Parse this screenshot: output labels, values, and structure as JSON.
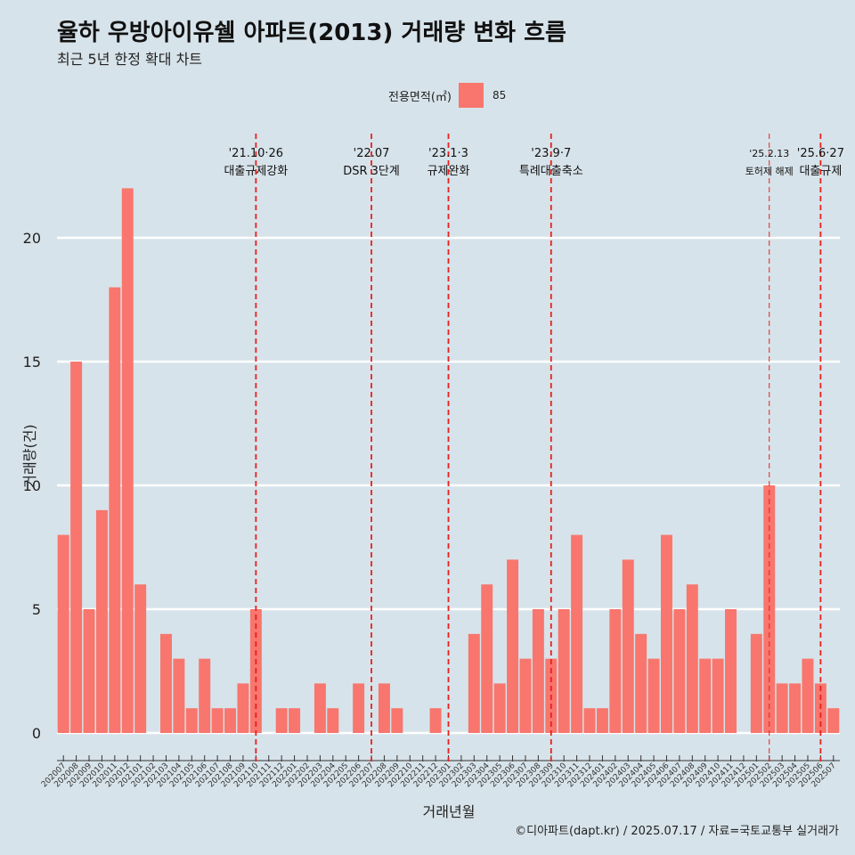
{
  "header": {
    "title": "율하 우방아이유쉘 아파트(2013) 거래량 변화 흐름",
    "subtitle": "최근 5년 한정 확대 차트"
  },
  "legend": {
    "title": "전용면적(㎡)",
    "label": "85",
    "color": "#f8766d"
  },
  "caption": "©디아파트(dapt.kr) / 2025.07.17 / 자료=국토교통부 실거래가",
  "chart_data": {
    "type": "bar",
    "xlabel": "거래년월",
    "ylabel": "거래량(건)",
    "ylim": [
      0,
      24
    ],
    "yticks": [
      0,
      5,
      10,
      15,
      20
    ],
    "bar_color": "#f8766d",
    "grid": true,
    "categories": [
      "202007",
      "202008",
      "202009",
      "202010",
      "202011",
      "202012",
      "202101",
      "202102",
      "202103",
      "202104",
      "202105",
      "202106",
      "202107",
      "202108",
      "202109",
      "202110",
      "202111",
      "202112",
      "202201",
      "202202",
      "202203",
      "202204",
      "202205",
      "202206",
      "202207",
      "202208",
      "202209",
      "202210",
      "202211",
      "202212",
      "202301",
      "202302",
      "202303",
      "202304",
      "202305",
      "202306",
      "202307",
      "202308",
      "202309",
      "202310",
      "202311",
      "202312",
      "202401",
      "202402",
      "202403",
      "202404",
      "202405",
      "202406",
      "202407",
      "202408",
      "202409",
      "202410",
      "202411",
      "202412",
      "202501",
      "202502",
      "202503",
      "202504",
      "202505",
      "202506",
      "202507"
    ],
    "series": [
      {
        "name": "85",
        "values": [
          8,
          15,
          5,
          9,
          18,
          22,
          6,
          0,
          4,
          3,
          1,
          3,
          1,
          1,
          2,
          5,
          0,
          1,
          1,
          0,
          2,
          1,
          0,
          2,
          0,
          2,
          1,
          0,
          0,
          1,
          0,
          0,
          4,
          6,
          2,
          7,
          3,
          5,
          3,
          5,
          8,
          1,
          1,
          5,
          7,
          4,
          3,
          8,
          5,
          6,
          3,
          3,
          5,
          0,
          4,
          10,
          2,
          2,
          3,
          2,
          1
        ]
      }
    ],
    "annotations": [
      {
        "x": "202110",
        "date": "'21.10·26",
        "label": "대출규제강화",
        "style": "dashed"
      },
      {
        "x": "202207",
        "date": "'22.07",
        "label": "DSR 3단계",
        "style": "dashed"
      },
      {
        "x": "202301",
        "date": "'23.1·3",
        "label": "규제완화",
        "style": "dashed"
      },
      {
        "x": "202309",
        "date": "'23.9·7",
        "label": "특례대출축소",
        "style": "dashed"
      },
      {
        "x": "202502",
        "date": "'25.2.13",
        "label": "토허제 해제",
        "style": "thin"
      },
      {
        "x": "202506",
        "date": "'25.6·27",
        "label": "대출규제",
        "style": "dashed"
      }
    ]
  }
}
